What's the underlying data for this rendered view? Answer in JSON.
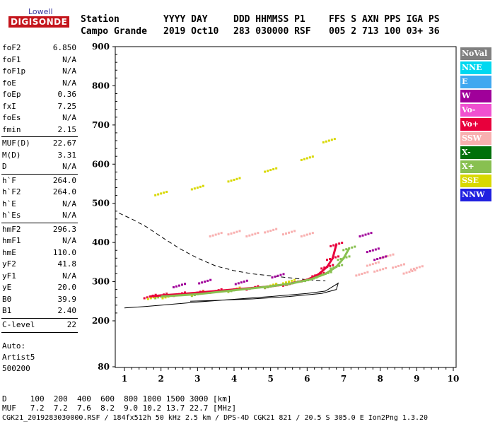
{
  "logo": {
    "top": "Lowell",
    "bottom": "DIGISONDE"
  },
  "header": {
    "labels": [
      "Station",
      "YYYY DAY",
      "DDD HHMMSS P1",
      "FFS S AXN PPS IGA PS"
    ],
    "values": [
      "Campo Grande",
      "2019 Oct10",
      "283 030000 RSF",
      "005 2 713 100 03+ 36"
    ]
  },
  "params": [
    {
      "name": "foF2",
      "value": "6.850"
    },
    {
      "name": "foF1",
      "value": "N/A"
    },
    {
      "name": "foF1p",
      "value": "N/A"
    },
    {
      "name": "foE",
      "value": "N/A"
    },
    {
      "name": "foEp",
      "value": "0.36"
    },
    {
      "name": "fxI",
      "value": "7.25"
    },
    {
      "name": "foEs",
      "value": "N/A"
    },
    {
      "name": "fmin",
      "value": "2.15"
    },
    {
      "name": "MUF(D)",
      "value": "22.67"
    },
    {
      "name": "M(D)",
      "value": "3.31"
    },
    {
      "name": "D",
      "value": "N/A"
    },
    {
      "name": "h`F",
      "value": "264.0"
    },
    {
      "name": "h`F2",
      "value": "264.0"
    },
    {
      "name": "h`E",
      "value": "N/A"
    },
    {
      "name": "h`Es",
      "value": "N/A"
    },
    {
      "name": "hmF2",
      "value": "296.3"
    },
    {
      "name": "hmF1",
      "value": "N/A"
    },
    {
      "name": "hmE",
      "value": "110.0"
    },
    {
      "name": "yF2",
      "value": "41.8"
    },
    {
      "name": "yF1",
      "value": "N/A"
    },
    {
      "name": "yE",
      "value": "20.0"
    },
    {
      "name": "B0",
      "value": "39.9"
    },
    {
      "name": "B1",
      "value": "2.40"
    },
    {
      "name": "C-level",
      "value": "22"
    }
  ],
  "auto": {
    "line1": "Auto:",
    "line2": "Artist5",
    "line3": "500200"
  },
  "legend": [
    {
      "label": "NoVal",
      "color": "#808080"
    },
    {
      "label": "NNE",
      "color": "#00d8f0"
    },
    {
      "label": "E",
      "color": "#40a8f0"
    },
    {
      "label": "W",
      "color": "#a0009a"
    },
    {
      "label": "Vo-",
      "color": "#f050d0"
    },
    {
      "label": "Vo+",
      "color": "#e8003c"
    },
    {
      "label": "SSW",
      "color": "#f8b0b0"
    },
    {
      "label": "X-",
      "color": "#00700a"
    },
    {
      "label": "X+",
      "color": "#88c050"
    },
    {
      "label": "SSE",
      "color": "#d8d800"
    },
    {
      "label": "NNW",
      "color": "#2020e0"
    }
  ],
  "bottom": {
    "d_row": "D     100  200  400  600  800 1000 1500 3000 [km]",
    "muf_row": "MUF   7.2  7.2  7.6  8.2  9.0 10.2 13.7 22.7 [MHz]",
    "footer": "CGK21_2019283030000.RSF / 184fx512h 50 kHz 2.5 km / DPS-4D CGK21 821 / 20.5 S 305.0 E Ion2Png 1.3.20"
  },
  "chart_data": {
    "type": "scatter",
    "xlim": [
      0.8,
      10
    ],
    "ylim": [
      80,
      900
    ],
    "x_ticks": [
      "1",
      "2",
      "3",
      "4",
      "5",
      "6",
      "7",
      "8",
      "9",
      "10"
    ],
    "y_ticks": [
      "80",
      "200",
      "300",
      "400",
      "500",
      "600",
      "700",
      "800",
      "900"
    ],
    "series": [
      {
        "name": "Vo+",
        "color": "#e8003c",
        "x": [
          1.7,
          2.0,
          2.5,
          3.0,
          3.5,
          4.0,
          4.5,
          5.0,
          5.5,
          6.0,
          6.3,
          6.55,
          6.7,
          6.8
        ],
        "y": [
          262,
          265,
          268,
          272,
          276,
          280,
          284,
          288,
          294,
          305,
          318,
          338,
          360,
          395
        ]
      },
      {
        "name": "X+",
        "color": "#88c050",
        "x": [
          2.0,
          3.0,
          4.0,
          5.0,
          5.6,
          6.1,
          6.5,
          6.8,
          7.0,
          7.15
        ],
        "y": [
          262,
          268,
          278,
          288,
          296,
          306,
          320,
          338,
          360,
          385
        ]
      },
      {
        "name": "SSE",
        "color": "#d8d800",
        "x": [
          1.8,
          2.2,
          3.0,
          4.0,
          5.0,
          5.5,
          2.0,
          3.0,
          4.0,
          5.0,
          6.0,
          6.6
        ],
        "y": [
          260,
          262,
          270,
          280,
          290,
          300,
          525,
          540,
          560,
          585,
          615,
          660
        ]
      },
      {
        "name": "SSW",
        "color": "#f8b0b0",
        "x": [
          7.5,
          7.8,
          8.0,
          8.2,
          8.5,
          8.8,
          9.0,
          3.5,
          4.0,
          4.5,
          5.0,
          5.5,
          6.0
        ],
        "y": [
          320,
          345,
          330,
          365,
          340,
          325,
          335,
          420,
          425,
          420,
          430,
          425,
          420
        ]
      },
      {
        "name": "W",
        "color": "#a0009a",
        "x": [
          2.5,
          3.2,
          4.2,
          5.2,
          7.6,
          7.8,
          8.0
        ],
        "y": [
          290,
          300,
          298,
          315,
          420,
          380,
          360
        ]
      }
    ],
    "profile_x": [
      1.0,
      1.5,
      2.0,
      3.0,
      4.0,
      5.0,
      6.0,
      6.5,
      6.85,
      6.8,
      6.4,
      5.5,
      4.5,
      3.5,
      2.8
    ],
    "profile_y": [
      233,
      236,
      240,
      248,
      255,
      262,
      270,
      276,
      296,
      280,
      270,
      262,
      256,
      252,
      250
    ],
    "dashed_x": [
      0.85,
      1.2,
      1.6,
      2.0,
      2.5,
      3.0,
      3.5,
      4.0,
      4.5,
      5.0,
      5.5,
      6.0,
      6.5
    ],
    "dashed_y": [
      475,
      460,
      440,
      415,
      385,
      360,
      340,
      328,
      320,
      315,
      310,
      305,
      302
    ]
  }
}
